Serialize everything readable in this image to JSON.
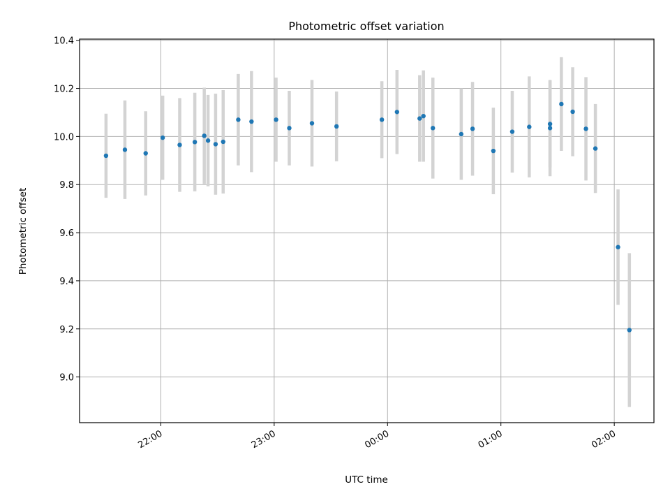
{
  "chart_data": {
    "type": "scatter",
    "title": "Photometric offset variation",
    "xlabel": "UTC time",
    "ylabel": "Photometric offset",
    "x_unit": "HH:MM (UTC)",
    "xlim": [
      "21:17",
      "02:21"
    ],
    "ylim": [
      8.81,
      10.405
    ],
    "grid": true,
    "x_ticks": [
      "22:00",
      "23:00",
      "00:00",
      "01:00",
      "02:00"
    ],
    "y_ticks": [
      "9.0",
      "9.2",
      "9.4",
      "9.6",
      "9.8",
      "10.0",
      "10.2",
      "10.4"
    ],
    "marker_color": "#1f77b4",
    "errorbar_color": "#d3d3d3",
    "points": [
      {
        "x": "21:31",
        "y": 9.92,
        "err": 0.175
      },
      {
        "x": "21:41",
        "y": 9.945,
        "err": 0.205
      },
      {
        "x": "21:52",
        "y": 9.93,
        "err": 0.175
      },
      {
        "x": "22:01",
        "y": 9.995,
        "err": 0.175
      },
      {
        "x": "22:10",
        "y": 9.965,
        "err": 0.195
      },
      {
        "x": "22:18",
        "y": 9.977,
        "err": 0.205
      },
      {
        "x": "22:23",
        "y": 10.003,
        "err": 0.2
      },
      {
        "x": "22:25",
        "y": 9.983,
        "err": 0.19
      },
      {
        "x": "22:29",
        "y": 9.968,
        "err": 0.21
      },
      {
        "x": "22:33",
        "y": 9.978,
        "err": 0.215
      },
      {
        "x": "22:41",
        "y": 10.07,
        "err": 0.19
      },
      {
        "x": "22:48",
        "y": 10.062,
        "err": 0.21
      },
      {
        "x": "23:01",
        "y": 10.07,
        "err": 0.175
      },
      {
        "x": "23:08",
        "y": 10.035,
        "err": 0.155
      },
      {
        "x": "23:20",
        "y": 10.055,
        "err": 0.18
      },
      {
        "x": "23:33",
        "y": 10.042,
        "err": 0.145
      },
      {
        "x": "23:57",
        "y": 10.07,
        "err": 0.16
      },
      {
        "x": "00:05",
        "y": 10.102,
        "err": 0.175
      },
      {
        "x": "00:17",
        "y": 10.075,
        "err": 0.18
      },
      {
        "x": "00:19",
        "y": 10.085,
        "err": 0.19
      },
      {
        "x": "00:24",
        "y": 10.035,
        "err": 0.21
      },
      {
        "x": "00:39",
        "y": 10.01,
        "err": 0.19
      },
      {
        "x": "00:45",
        "y": 10.032,
        "err": 0.195
      },
      {
        "x": "00:56",
        "y": 9.94,
        "err": 0.18
      },
      {
        "x": "01:06",
        "y": 10.02,
        "err": 0.17
      },
      {
        "x": "01:15",
        "y": 10.04,
        "err": 0.21
      },
      {
        "x": "01:26",
        "y": 10.052,
        "err": 0.18
      },
      {
        "x": "01:26",
        "y": 10.035,
        "err": 0.2
      },
      {
        "x": "01:32",
        "y": 10.135,
        "err": 0.195
      },
      {
        "x": "01:38",
        "y": 10.103,
        "err": 0.185
      },
      {
        "x": "01:45",
        "y": 10.032,
        "err": 0.215
      },
      {
        "x": "01:50",
        "y": 9.95,
        "err": 0.185
      },
      {
        "x": "02:02",
        "y": 9.54,
        "err": 0.24
      },
      {
        "x": "02:08",
        "y": 9.195,
        "err": 0.32
      }
    ]
  }
}
